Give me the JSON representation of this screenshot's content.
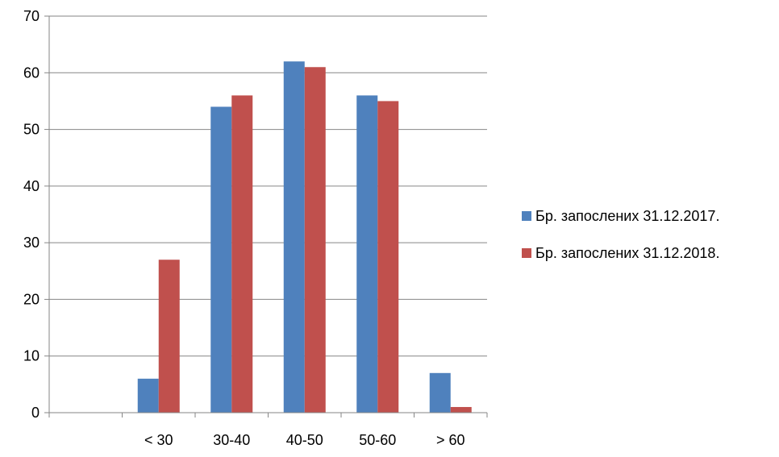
{
  "chart_data": {
    "type": "bar",
    "title": "",
    "xlabel": "",
    "ylabel": "",
    "categories": [
      "",
      "< 30",
      "30-40",
      "40-50",
      "50-60",
      "> 60"
    ],
    "series": [
      {
        "name": "Бр. запослених 31.12.2017.",
        "color": "#4F81BD",
        "values": [
          0,
          6,
          54,
          62,
          56,
          7
        ]
      },
      {
        "name": "Бр. запослених 31.12.2018.",
        "color": "#C0504D",
        "values": [
          0,
          27,
          56,
          61,
          55,
          1
        ]
      }
    ],
    "ylim": [
      0,
      70
    ],
    "yticks": [
      0,
      10,
      20,
      30,
      40,
      50,
      60,
      70
    ],
    "grid": true,
    "legend_position": "right"
  }
}
